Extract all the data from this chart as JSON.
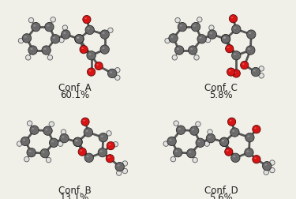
{
  "background_color": "#f0efe8",
  "conformers": [
    {
      "label": "Conf. A",
      "percentage": "60.1%"
    },
    {
      "label": "Conf. B",
      "percentage": "13.1%"
    },
    {
      "label": "Conf. C",
      "percentage": "5.8%"
    },
    {
      "label": "Conf. D",
      "percentage": "5.6%"
    }
  ],
  "label_fontsize": 8.5,
  "pct_fontsize": 8.5,
  "text_color": "#222222",
  "carbon_color": [
    0.42,
    0.42,
    0.42
  ],
  "oxygen_color": [
    0.85,
    0.08,
    0.08
  ],
  "hydrogen_color": [
    0.88,
    0.88,
    0.88
  ],
  "bond_color": "#555555",
  "bond_lw": 1.8
}
